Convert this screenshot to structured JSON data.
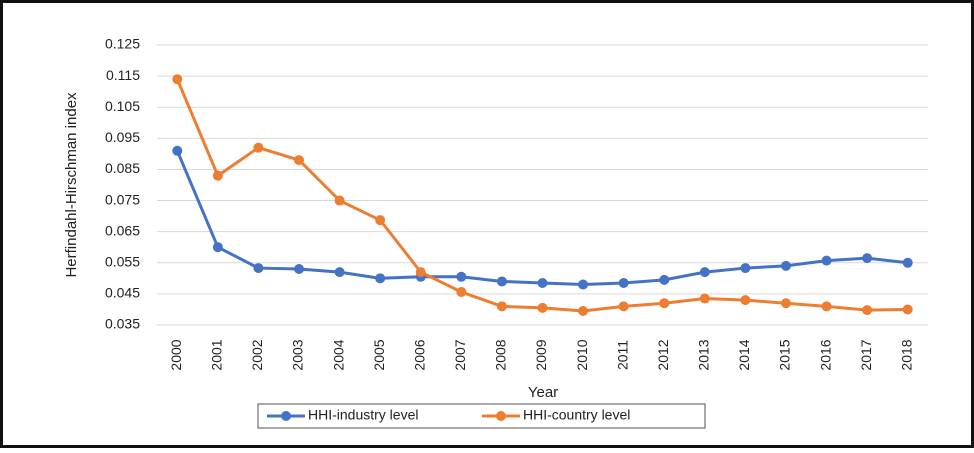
{
  "chart_data": {
    "type": "line",
    "x_label": "Year",
    "y_label": "Herfindahl-Hirschman  index",
    "categories": [
      "2000",
      "2001",
      "2002",
      "2003",
      "2004",
      "2005",
      "2006",
      "2007",
      "2008",
      "2009",
      "2010",
      "2011",
      "2012",
      "2013",
      "2014",
      "2015",
      "2016",
      "2017",
      "2018"
    ],
    "series": [
      {
        "name": "HHI-industry level",
        "color": "#4472c4",
        "values": [
          0.091,
          0.06,
          0.0533,
          0.053,
          0.052,
          0.05,
          0.0505,
          0.0505,
          0.049,
          0.0485,
          0.048,
          0.0485,
          0.0495,
          0.052,
          0.0533,
          0.054,
          0.0557,
          0.0565,
          0.055
        ]
      },
      {
        "name": "HHI-country level",
        "color": "#ed7d31",
        "values": [
          0.114,
          0.083,
          0.092,
          0.088,
          0.075,
          0.0687,
          0.052,
          0.0456,
          0.041,
          0.0405,
          0.0395,
          0.041,
          0.042,
          0.0435,
          0.043,
          0.042,
          0.041,
          0.0398,
          0.04
        ]
      }
    ],
    "ylim": [
      0.035,
      0.125
    ],
    "yticks": [
      0.035,
      0.045,
      0.055,
      0.065,
      0.075,
      0.085,
      0.095,
      0.105,
      0.115,
      0.125
    ],
    "grid": true,
    "legend": "bottom"
  }
}
